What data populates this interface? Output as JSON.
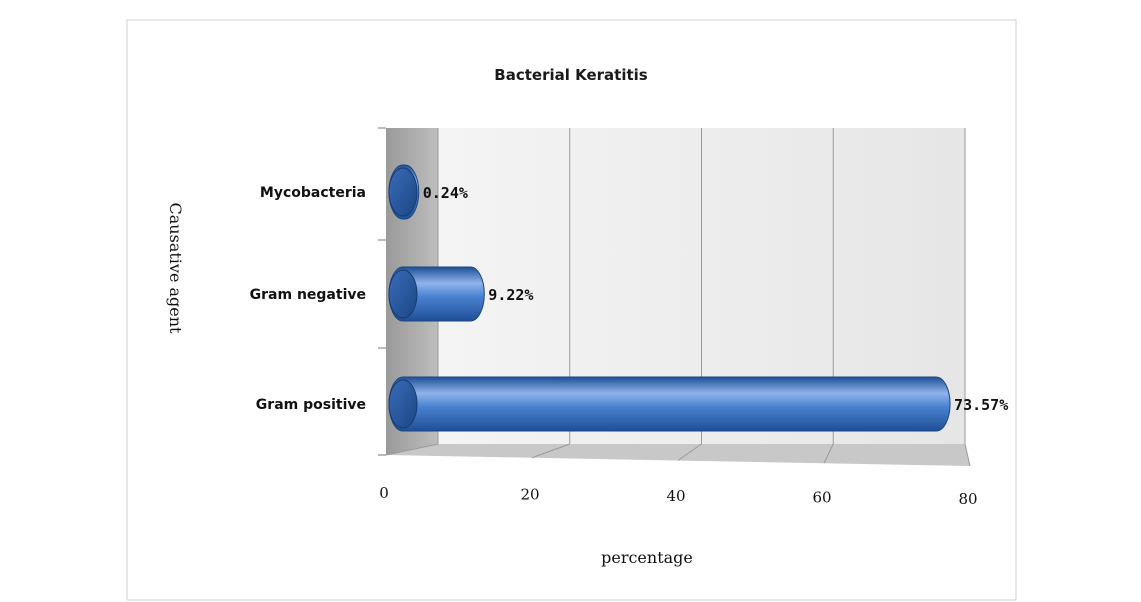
{
  "chart_data": {
    "type": "bar",
    "orientation": "horizontal",
    "title": "Bacterial Keratitis",
    "xlabel": "percentage",
    "ylabel": "Causative agent",
    "categories": [
      "Gram positive",
      "Gram negative",
      "Mycobacteria"
    ],
    "values": [
      73.57,
      9.22,
      0.24
    ],
    "data_labels": [
      "73.57%",
      "9.22%",
      "0.24%"
    ],
    "xlim": [
      0,
      80
    ],
    "xticks": [
      "0",
      "20",
      "40",
      "60",
      "80"
    ],
    "grid": true,
    "legend": "none",
    "colors": {
      "bar": "#3f76c8",
      "bar_dark": "#1e4f96",
      "bar_light": "#8fb4ea"
    }
  }
}
